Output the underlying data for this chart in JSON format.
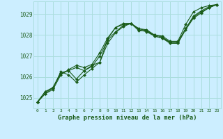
{
  "bg_color": "#cceeff",
  "grid_color": "#aadddd",
  "line_color": "#1a5c1a",
  "marker_color": "#1a5c1a",
  "xlabel": "Graphe pression niveau de la mer (hPa)",
  "xlabel_color": "#1a5c1a",
  "tick_color": "#1a5c1a",
  "ylim": [
    1024.5,
    1029.6
  ],
  "xlim": [
    -0.5,
    23.5
  ],
  "yticks": [
    1025,
    1026,
    1027,
    1028,
    1029
  ],
  "xticks": [
    0,
    1,
    2,
    3,
    4,
    5,
    6,
    7,
    8,
    9,
    10,
    11,
    12,
    13,
    14,
    15,
    16,
    17,
    18,
    19,
    20,
    21,
    22,
    23
  ],
  "series": [
    [
      1024.8,
      1025.3,
      1025.5,
      1026.2,
      1026.3,
      1025.9,
      1026.3,
      1026.55,
      1026.7,
      1027.8,
      1028.35,
      1028.5,
      1028.55,
      1028.3,
      1028.25,
      1028.0,
      1027.95,
      1027.7,
      1027.7,
      1028.5,
      1029.1,
      1029.3,
      1029.4,
      1029.45
    ],
    [
      1024.8,
      1025.3,
      1025.45,
      1026.25,
      1026.1,
      1025.75,
      1026.1,
      1026.4,
      1026.7,
      1027.6,
      1028.1,
      1028.4,
      1028.55,
      1028.2,
      1028.2,
      1027.95,
      1027.85,
      1027.65,
      1027.65,
      1028.3,
      1028.9,
      1029.15,
      1029.35,
      1029.45
    ],
    [
      1024.8,
      1025.2,
      1025.4,
      1026.1,
      1026.35,
      1026.55,
      1026.45,
      1026.6,
      1027.15,
      1027.85,
      1028.35,
      1028.55,
      1028.55,
      1028.3,
      1028.2,
      1028.0,
      1027.9,
      1027.65,
      1027.65,
      1028.3,
      1028.85,
      1029.1,
      1029.3,
      1029.45
    ],
    [
      1024.8,
      1025.2,
      1025.5,
      1026.15,
      1026.3,
      1026.45,
      1026.3,
      1026.5,
      1027.0,
      1027.75,
      1028.15,
      1028.45,
      1028.55,
      1028.25,
      1028.15,
      1027.95,
      1027.85,
      1027.6,
      1027.6,
      1028.25,
      1028.8,
      1029.05,
      1029.3,
      1029.45
    ]
  ]
}
